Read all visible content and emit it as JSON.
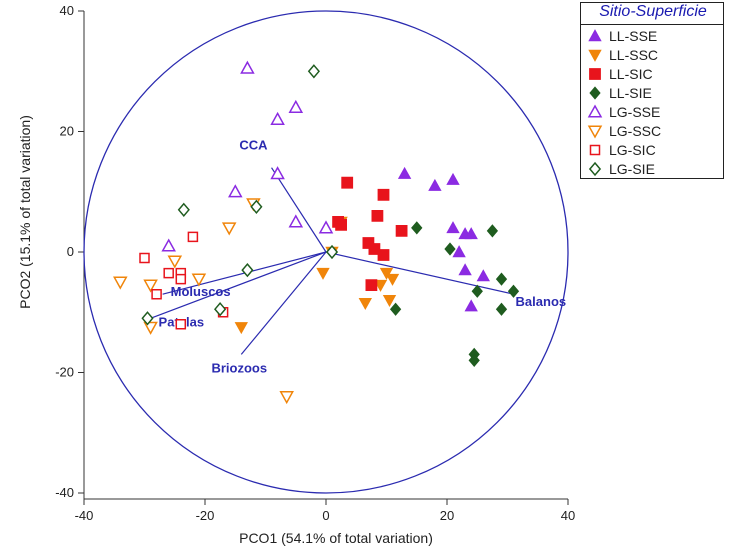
{
  "chart_data": {
    "type": "scatter",
    "title": "",
    "xlabel": "PCO1 (54.1% of total variation)",
    "ylabel": "PCO2 (15.1% of total variation)",
    "xlim": [
      -40,
      40
    ],
    "ylim": [
      -40,
      40
    ],
    "xticks": [
      -40,
      -20,
      0,
      20,
      40
    ],
    "yticks": [
      -40,
      -20,
      0,
      20,
      40
    ],
    "legend_title": "Sitio-Superficie",
    "legend_position": "top-right",
    "correlation_circle_radius": 40,
    "vectors": [
      {
        "name": "CCA",
        "x": -9,
        "y": 14
      },
      {
        "name": "Balanos",
        "x": 31,
        "y": -7
      },
      {
        "name": "Moluscos",
        "x": -27,
        "y": -7
      },
      {
        "name": "Patelas",
        "x": -29,
        "y": -11
      },
      {
        "name": "Briozoos",
        "x": -14,
        "y": -17
      }
    ],
    "series": [
      {
        "name": "LL-SSE",
        "marker": "triangle",
        "filled": true,
        "color": "#8b2be2",
        "points": [
          [
            13,
            13
          ],
          [
            18,
            11
          ],
          [
            21,
            12
          ],
          [
            21,
            4
          ],
          [
            23,
            3
          ],
          [
            22,
            0
          ],
          [
            23,
            -3
          ],
          [
            26,
            -4
          ],
          [
            24,
            -9
          ],
          [
            24,
            3
          ]
        ]
      },
      {
        "name": "LL-SSC",
        "marker": "triangle-down",
        "filled": true,
        "color": "#f0850a",
        "points": [
          [
            -0.5,
            -3.5
          ],
          [
            1,
            0
          ],
          [
            2.5,
            5
          ],
          [
            6.5,
            -8.5
          ],
          [
            9,
            -5.5
          ],
          [
            10,
            -3.5
          ],
          [
            10.5,
            -8
          ],
          [
            11,
            -4.5
          ],
          [
            -14,
            -12.5
          ]
        ]
      },
      {
        "name": "LL-SIC",
        "marker": "square",
        "filled": true,
        "color": "#e8141c",
        "points": [
          [
            3.5,
            11.5
          ],
          [
            9.5,
            9.5
          ],
          [
            8.5,
            6
          ],
          [
            12.5,
            3.5
          ],
          [
            2,
            5
          ],
          [
            2.5,
            4.5
          ],
          [
            7,
            1.5
          ],
          [
            8,
            0.5
          ],
          [
            9.5,
            -0.5
          ],
          [
            7.5,
            -5.5
          ]
        ]
      },
      {
        "name": "LL-SIE",
        "marker": "diamond",
        "filled": true,
        "color": "#1f5c1f",
        "points": [
          [
            15,
            4
          ],
          [
            20.5,
            0.5
          ],
          [
            27.5,
            3.5
          ],
          [
            25,
            -6.5
          ],
          [
            29,
            -4.5
          ],
          [
            31,
            -6.5
          ],
          [
            29,
            -9.5
          ],
          [
            11.5,
            -9.5
          ],
          [
            24.5,
            -17
          ],
          [
            24.5,
            -18
          ]
        ]
      },
      {
        "name": "LG-SSE",
        "marker": "triangle",
        "filled": false,
        "color": "#8b2be2",
        "points": [
          [
            -13,
            30.5
          ],
          [
            -8,
            22
          ],
          [
            -5,
            24
          ],
          [
            -8,
            13
          ],
          [
            -15,
            10
          ],
          [
            -5,
            5
          ],
          [
            0,
            4
          ],
          [
            -26,
            1
          ]
        ]
      },
      {
        "name": "LG-SSC",
        "marker": "triangle-down",
        "filled": false,
        "color": "#f0850a",
        "points": [
          [
            -34,
            -5
          ],
          [
            -29,
            -5.5
          ],
          [
            -25,
            -1.5
          ],
          [
            -21,
            -4.5
          ],
          [
            -16,
            4
          ],
          [
            -12,
            8
          ],
          [
            -29,
            -12.5
          ],
          [
            -6.5,
            -24
          ]
        ]
      },
      {
        "name": "LG-SIC",
        "marker": "square",
        "filled": false,
        "color": "#e8141c",
        "points": [
          [
            -30,
            -1
          ],
          [
            -26,
            -3.5
          ],
          [
            -24,
            -3.5
          ],
          [
            -24,
            -4.5
          ],
          [
            -22,
            2.5
          ],
          [
            -28,
            -7
          ],
          [
            -24,
            -12
          ],
          [
            -17,
            -10
          ]
        ]
      },
      {
        "name": "LG-SIE",
        "marker": "diamond",
        "filled": false,
        "color": "#1f5c1f",
        "points": [
          [
            -2,
            30
          ],
          [
            -23.5,
            7
          ],
          [
            -11.5,
            7.5
          ],
          [
            -13,
            -3
          ],
          [
            -17.5,
            -9.5
          ],
          [
            -29.5,
            -11
          ],
          [
            1,
            0
          ]
        ]
      }
    ]
  }
}
